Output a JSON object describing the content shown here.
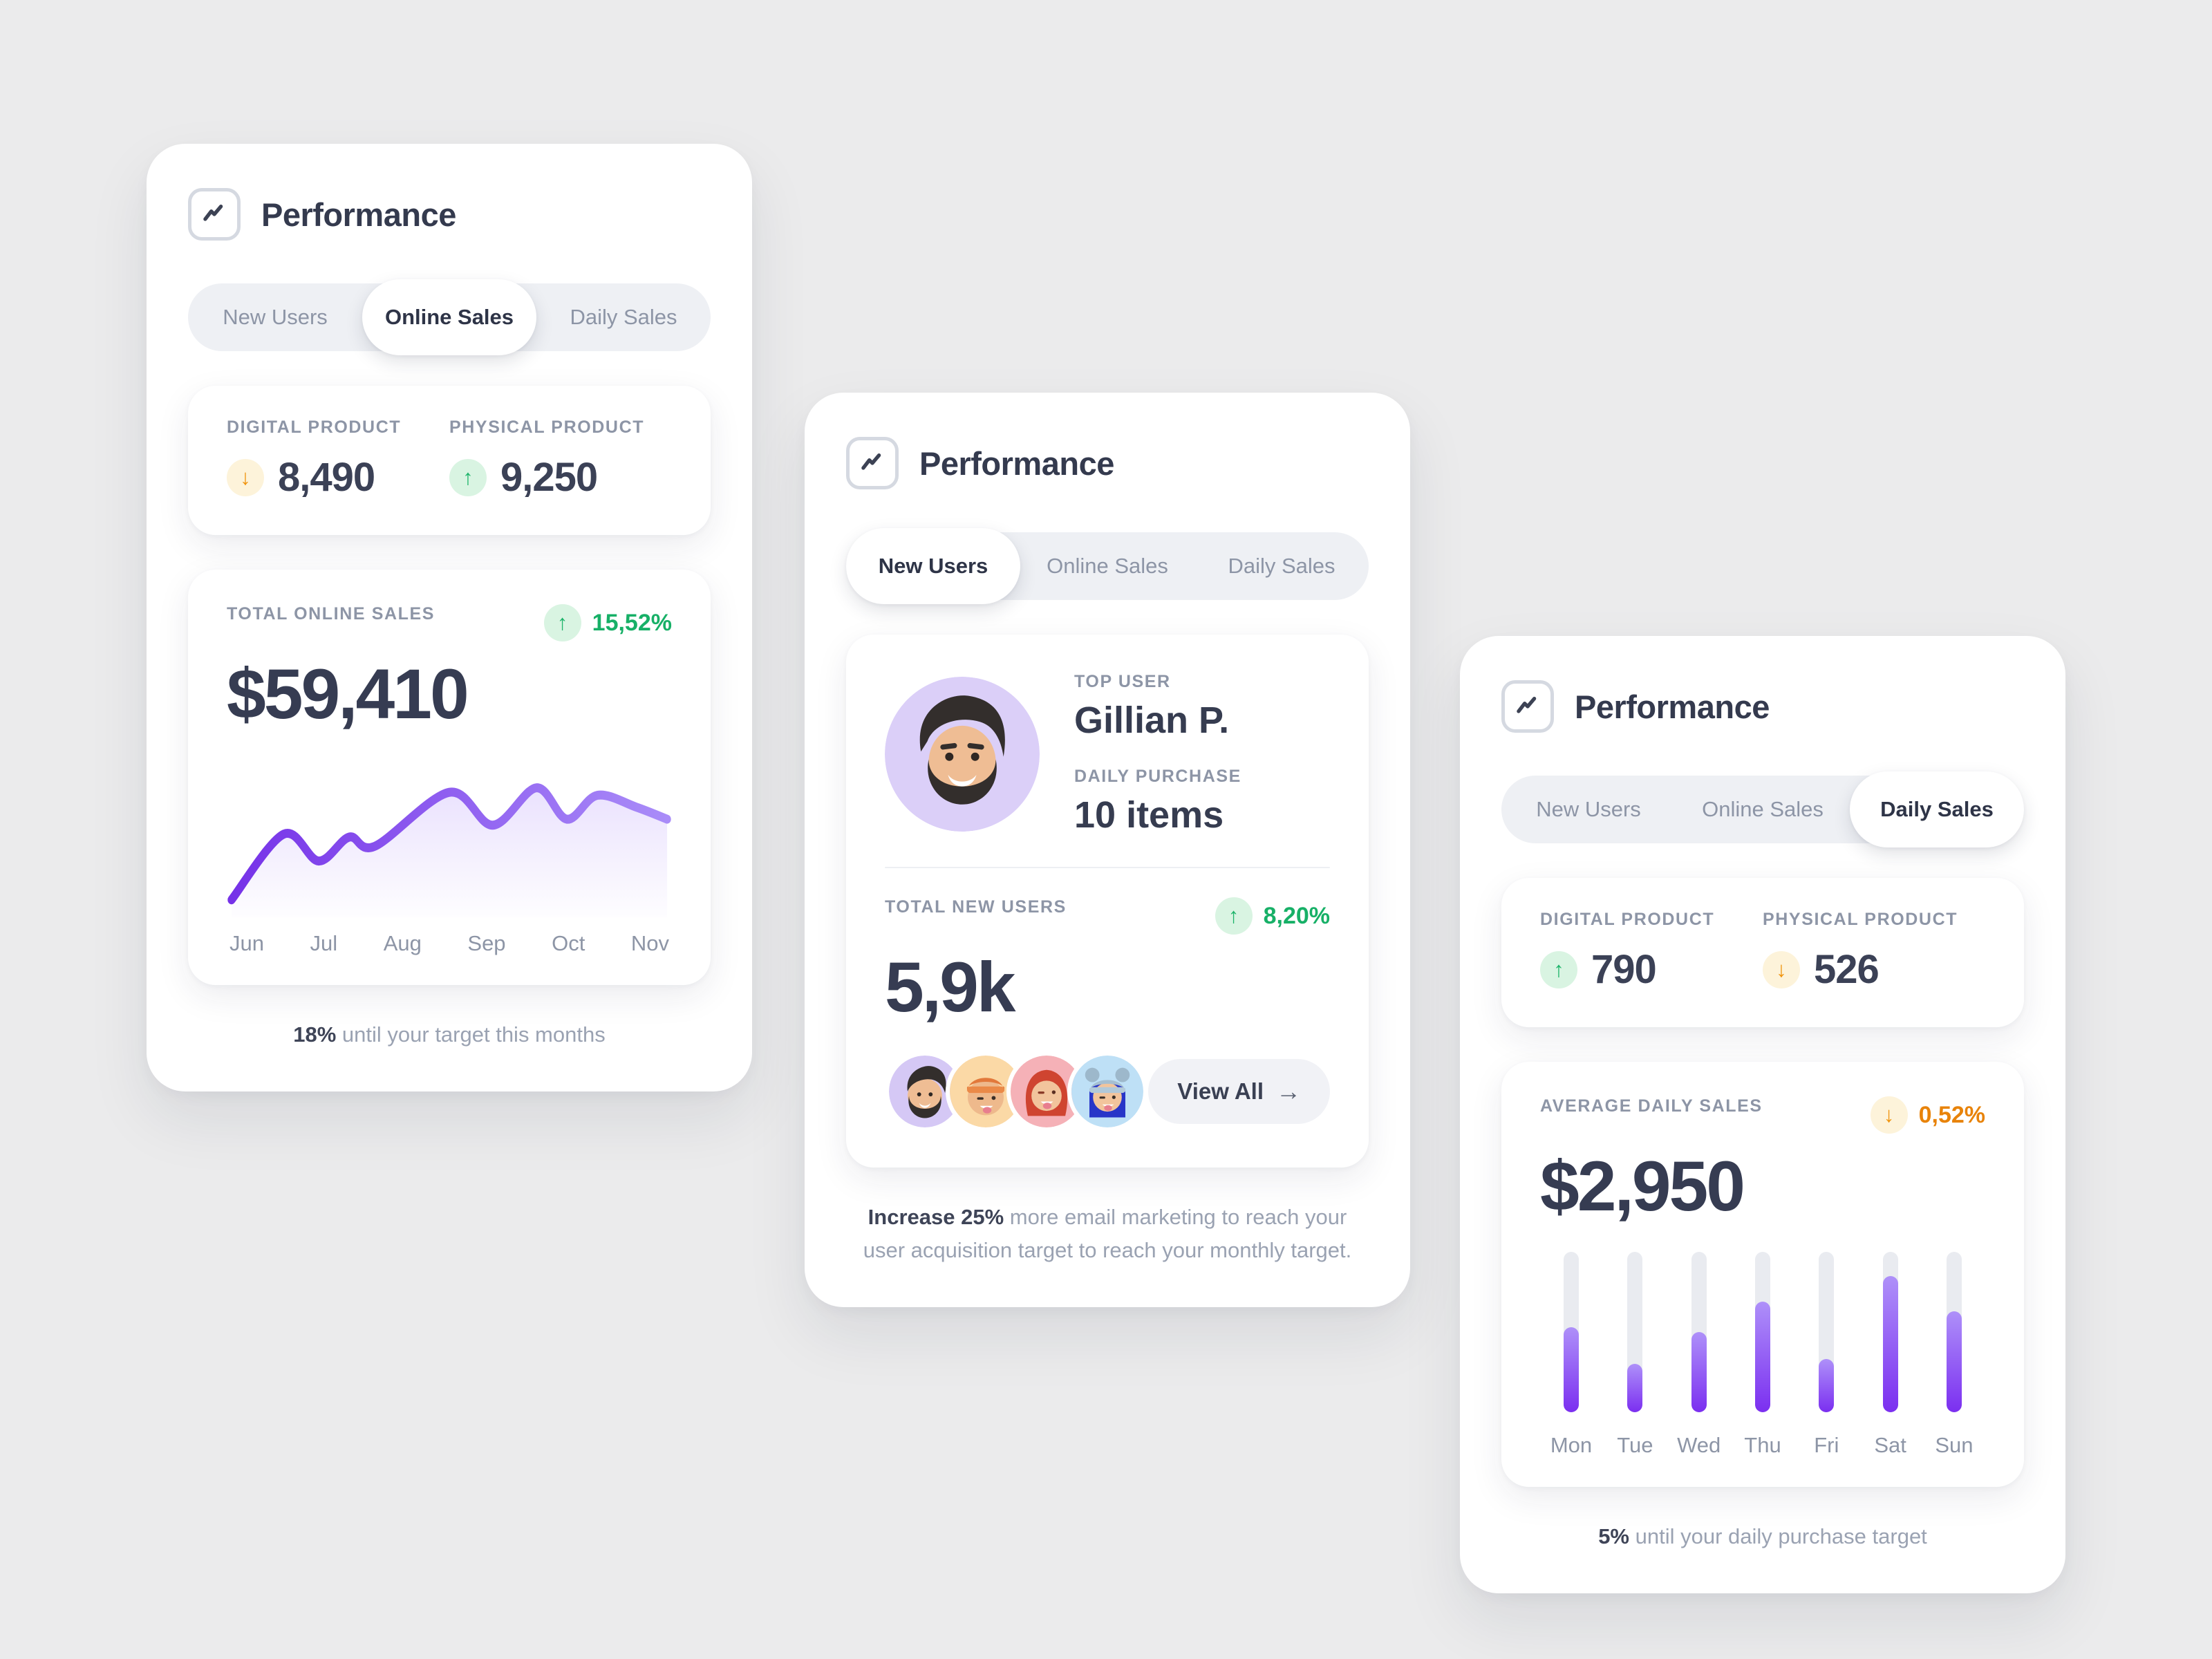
{
  "icons": {
    "arrow_up": "↑",
    "arrow_down": "↓",
    "arrow_right": "→"
  },
  "cards": [
    {
      "title": "Performance",
      "tabs": [
        {
          "label": "New Users",
          "active": false
        },
        {
          "label": "Online Sales",
          "active": true
        },
        {
          "label": "Daily Sales",
          "active": false
        }
      ],
      "stats": {
        "left": {
          "label": "DIGITAL PRODUCT",
          "value": "8,490",
          "trend": "down"
        },
        "right": {
          "label": "PHYSICAL PRODUCT",
          "value": "9,250",
          "trend": "up"
        }
      },
      "summary": {
        "label": "TOTAL ONLINE SALES",
        "badge": "15,52%",
        "badge_trend": "up",
        "amount": "$59,410"
      },
      "footer": {
        "highlight": "18%",
        "text": " until your target this months"
      }
    },
    {
      "title": "Performance",
      "tabs": [
        {
          "label": "New Users",
          "active": true
        },
        {
          "label": "Online Sales",
          "active": false
        },
        {
          "label": "Daily Sales",
          "active": false
        }
      ],
      "top_user": {
        "label": "TOP USER",
        "name": "Gillian P.",
        "purchase_label": "DAILY PURCHASE",
        "purchase": "10 items"
      },
      "summary": {
        "label": "TOTAL NEW USERS",
        "badge": "8,20%",
        "badge_trend": "up",
        "amount": "5,9k"
      },
      "view_all_label": "View All",
      "footer": {
        "highlight": "Increase 25%",
        "text": " more email marketing to reach your user acquisition target to reach your monthly target."
      }
    },
    {
      "title": "Performance",
      "tabs": [
        {
          "label": "New Users",
          "active": false
        },
        {
          "label": "Online Sales",
          "active": false
        },
        {
          "label": "Daily Sales",
          "active": true
        }
      ],
      "stats": {
        "left": {
          "label": "DIGITAL PRODUCT",
          "value": "790",
          "trend": "up"
        },
        "right": {
          "label": "PHYSICAL PRODUCT",
          "value": "526",
          "trend": "down"
        }
      },
      "summary": {
        "label": "AVERAGE DAILY SALES",
        "badge": "0,52%",
        "badge_trend": "down",
        "amount": "$2,950"
      },
      "footer": {
        "highlight": "5%",
        "text": " until your daily purchase target"
      }
    }
  ],
  "chart_data": [
    {
      "type": "line",
      "title": "Total online sales by month",
      "x_labels": [
        "Jun",
        "Jul",
        "Aug",
        "Sep",
        "Oct",
        "Nov"
      ],
      "points_norm": [
        [
          0.0,
          0.08
        ],
        [
          0.12,
          0.52
        ],
        [
          0.2,
          0.34
        ],
        [
          0.27,
          0.5
        ],
        [
          0.33,
          0.44
        ],
        [
          0.5,
          0.8
        ],
        [
          0.6,
          0.58
        ],
        [
          0.7,
          0.83
        ],
        [
          0.77,
          0.62
        ],
        [
          0.84,
          0.78
        ],
        [
          0.93,
          0.7
        ],
        [
          1.0,
          0.62
        ]
      ],
      "ylim": [
        0,
        1
      ],
      "grid": false,
      "legend": false,
      "line_gradient": [
        "#7632e8",
        "#a98cf8"
      ],
      "area_gradient": [
        "rgba(139,92,246,0.18)",
        "rgba(139,92,246,0.01)"
      ]
    },
    {
      "type": "bar",
      "title": "Average daily sales by weekday",
      "categories": [
        "Mon",
        "Tue",
        "Wed",
        "Thu",
        "Fri",
        "Sat",
        "Sun"
      ],
      "values": [
        53,
        30,
        50,
        69,
        33,
        85,
        63
      ],
      "ylim": [
        0,
        100
      ],
      "grid": false,
      "bar_gradient": [
        "#ae90f9",
        "#7b2ff0"
      ],
      "track_color": "#e9ebf0"
    }
  ],
  "colors": {
    "page_bg": "#ebebec",
    "card_bg": "#ffffff",
    "accent_purple": "#7b2ff0",
    "positive_green": "#17b067",
    "negative_orange": "#f0930c",
    "text_dark": "#363c52",
    "text_gray": "#8d95a6"
  }
}
